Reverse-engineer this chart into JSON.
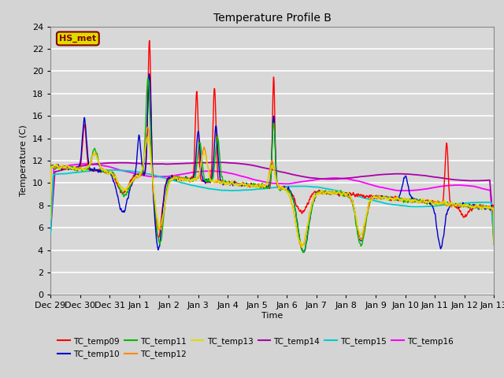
{
  "title": "Temperature Profile B",
  "xlabel": "Time",
  "ylabel": "Temperature (C)",
  "ylim": [
    0,
    24
  ],
  "background_color": "#d8d8d8",
  "grid_color": "#c0c0c0",
  "series_colors": {
    "TC_temp09": "#ff0000",
    "TC_temp10": "#0000cc",
    "TC_temp11": "#00bb00",
    "TC_temp12": "#ff8800",
    "TC_temp13": "#dddd00",
    "TC_temp14": "#aa00aa",
    "TC_temp15": "#00cccc",
    "TC_temp16": "#ff00ff"
  },
  "annotation_text": "HS_met",
  "annotation_fg": "#880000",
  "annotation_bg": "#dddd00",
  "annotation_edge": "#880000",
  "tick_labels": [
    "Dec 29",
    "Dec 30",
    "Dec 31",
    "Jan 1",
    "Jan 2",
    "Jan 3",
    "Jan 4",
    "Jan 5",
    "Jan 6",
    "Jan 7",
    "Jan 8",
    "Jan 9",
    "Jan 10",
    "Jan 11",
    "Jan 12",
    "Jan 13"
  ],
  "legend_entries": [
    "TC_temp09",
    "TC_temp10",
    "TC_temp11",
    "TC_temp12",
    "TC_temp13",
    "TC_temp14",
    "TC_temp15",
    "TC_temp16"
  ]
}
